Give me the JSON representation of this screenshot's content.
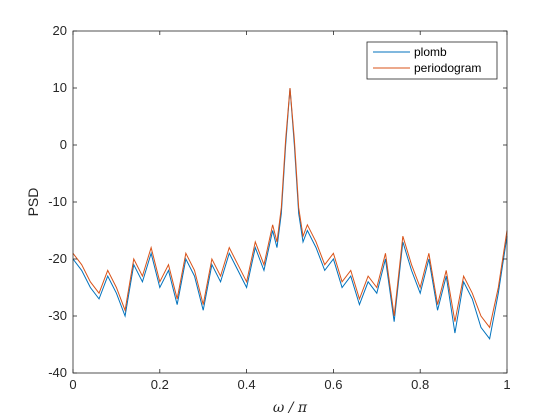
{
  "chart_data": {
    "type": "line",
    "title": "",
    "xlabel": "ω / π",
    "ylabel": "PSD",
    "xlim": [
      0,
      1
    ],
    "ylim": [
      -40,
      20
    ],
    "xticks": [
      "0",
      "0.2",
      "0.4",
      "0.6",
      "0.8",
      "1"
    ],
    "yticks": [
      "-40",
      "-30",
      "-20",
      "-10",
      "0",
      "10",
      "20"
    ],
    "grid": false,
    "legend_position": "top-right",
    "x": [
      0,
      0.02,
      0.04,
      0.06,
      0.08,
      0.1,
      0.12,
      0.14,
      0.16,
      0.18,
      0.2,
      0.22,
      0.24,
      0.26,
      0.28,
      0.3,
      0.32,
      0.34,
      0.36,
      0.38,
      0.4,
      0.42,
      0.44,
      0.46,
      0.47,
      0.48,
      0.49,
      0.5,
      0.51,
      0.52,
      0.53,
      0.54,
      0.56,
      0.58,
      0.6,
      0.62,
      0.64,
      0.66,
      0.68,
      0.7,
      0.72,
      0.74,
      0.76,
      0.78,
      0.8,
      0.82,
      0.84,
      0.86,
      0.88,
      0.9,
      0.92,
      0.94,
      0.96,
      0.98,
      1.0
    ],
    "series": [
      {
        "name": "plomb",
        "color": "#0072BD",
        "values": [
          -20,
          -22,
          -25,
          -27,
          -23,
          -26,
          -30,
          -21,
          -24,
          -19,
          -25,
          -22,
          -28,
          -20,
          -23,
          -29,
          -21,
          -24,
          -19,
          -22,
          -25,
          -18,
          -22,
          -15,
          -18,
          -12,
          0,
          10,
          0,
          -12,
          -17,
          -15,
          -18,
          -22,
          -20,
          -25,
          -23,
          -28,
          -24,
          -26,
          -20,
          -31,
          -17,
          -22,
          -26,
          -20,
          -29,
          -23,
          -33,
          -24,
          -27,
          -32,
          -34,
          -26,
          -16
        ]
      },
      {
        "name": "periodogram",
        "color": "#D95319",
        "values": [
          -19,
          -21,
          -24,
          -26,
          -22,
          -25,
          -29,
          -20,
          -23,
          -18,
          -24,
          -21,
          -27,
          -19,
          -22,
          -28,
          -20,
          -23,
          -18,
          -21,
          -24,
          -17,
          -21,
          -14,
          -17,
          -11,
          1,
          10,
          1,
          -11,
          -16,
          -14,
          -17,
          -21,
          -19,
          -24,
          -22,
          -27,
          -23,
          -25,
          -19,
          -30,
          -16,
          -21,
          -25,
          -19,
          -28,
          -22,
          -31,
          -23,
          -26,
          -30,
          -32,
          -25,
          -15
        ]
      }
    ]
  }
}
